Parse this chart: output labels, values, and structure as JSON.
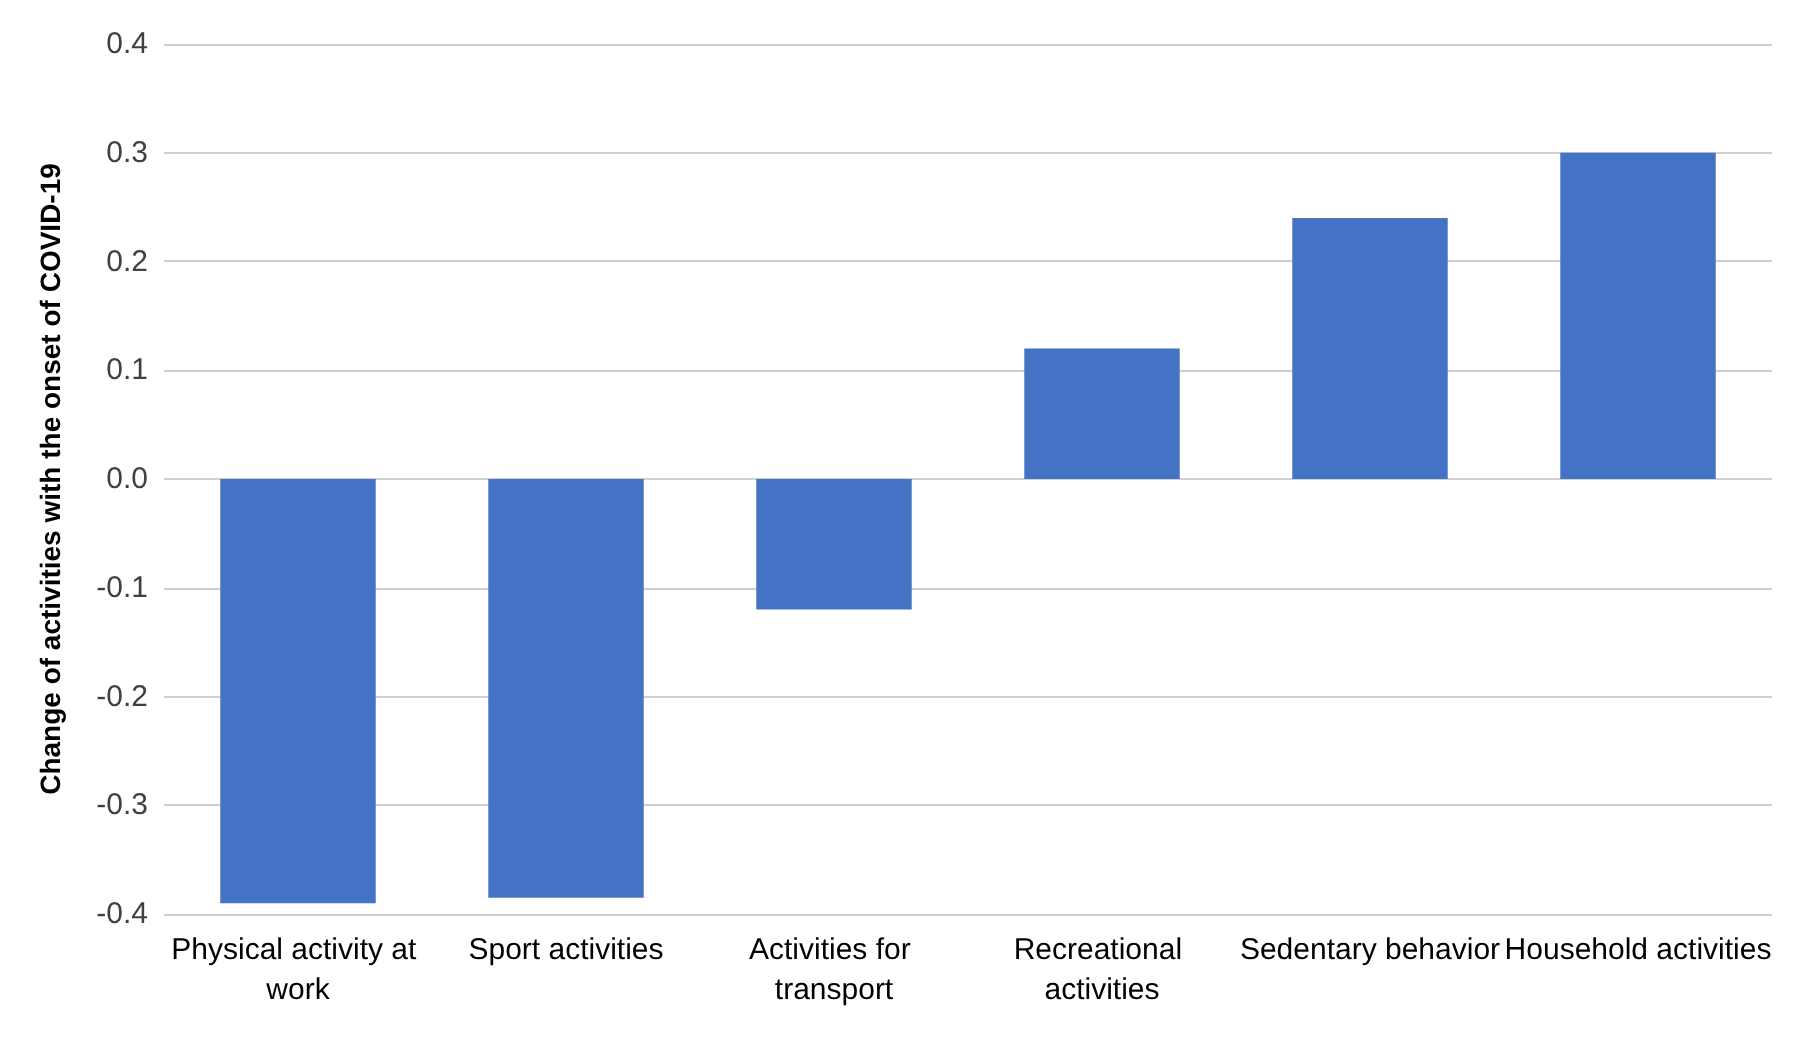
{
  "chart_data": {
    "type": "bar",
    "ylabel": "Change of activities with the onset of COVID-19",
    "categories": [
      "Physical activity at work",
      "Sport activities",
      "Activities for transport",
      "Recreational activities",
      "Sedentary behavior",
      "Household activities"
    ],
    "values": [
      -0.39,
      -0.385,
      -0.12,
      0.12,
      0.24,
      0.3
    ],
    "color": "#4472c4",
    "ylim": [
      -0.4,
      0.4
    ],
    "yticks": [
      -0.4,
      -0.3,
      -0.2,
      -0.1,
      {
        "value": 0,
        "label": "0.0"
      },
      0.1,
      0.2,
      0.3,
      0.4
    ],
    "grid": "y"
  }
}
